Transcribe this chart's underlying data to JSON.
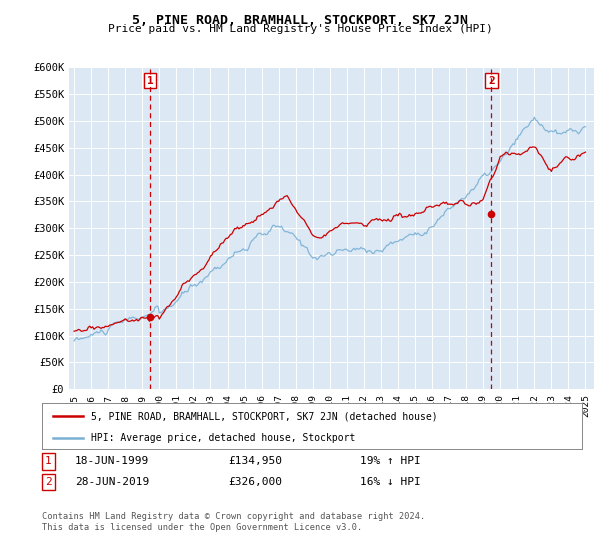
{
  "title": "5, PINE ROAD, BRAMHALL, STOCKPORT, SK7 2JN",
  "subtitle": "Price paid vs. HM Land Registry's House Price Index (HPI)",
  "legend_property": "5, PINE ROAD, BRAMHALL, STOCKPORT, SK7 2JN (detached house)",
  "legend_hpi": "HPI: Average price, detached house, Stockport",
  "sale1_date": 1999.46,
  "sale1_price": 134950,
  "sale2_date": 2019.48,
  "sale2_price": 326000,
  "sale1_text": "18-JUN-1999",
  "sale1_amount": "£134,950",
  "sale1_hpi": "19% ↑ HPI",
  "sale2_text": "28-JUN-2019",
  "sale2_amount": "£326,000",
  "sale2_hpi": "16% ↓ HPI",
  "footer": "Contains HM Land Registry data © Crown copyright and database right 2024.\nThis data is licensed under the Open Government Licence v3.0.",
  "property_color": "#cc0000",
  "hpi_color": "#7ab0d4",
  "vline_color": "#cc0000",
  "chart_bg": "#dce9f5",
  "ylim": [
    0,
    600000
  ],
  "xlim": [
    1994.7,
    2025.5
  ],
  "yticks": [
    0,
    50000,
    100000,
    150000,
    200000,
    250000,
    300000,
    350000,
    400000,
    450000,
    500000,
    550000,
    600000
  ],
  "ytick_labels": [
    "£0",
    "£50K",
    "£100K",
    "£150K",
    "£200K",
    "£250K",
    "£300K",
    "£350K",
    "£400K",
    "£450K",
    "£500K",
    "£550K",
    "£600K"
  ],
  "xticks": [
    1995,
    1996,
    1997,
    1998,
    1999,
    2000,
    2001,
    2002,
    2003,
    2004,
    2005,
    2006,
    2007,
    2008,
    2009,
    2010,
    2011,
    2012,
    2013,
    2014,
    2015,
    2016,
    2017,
    2018,
    2019,
    2020,
    2021,
    2022,
    2023,
    2024,
    2025
  ]
}
